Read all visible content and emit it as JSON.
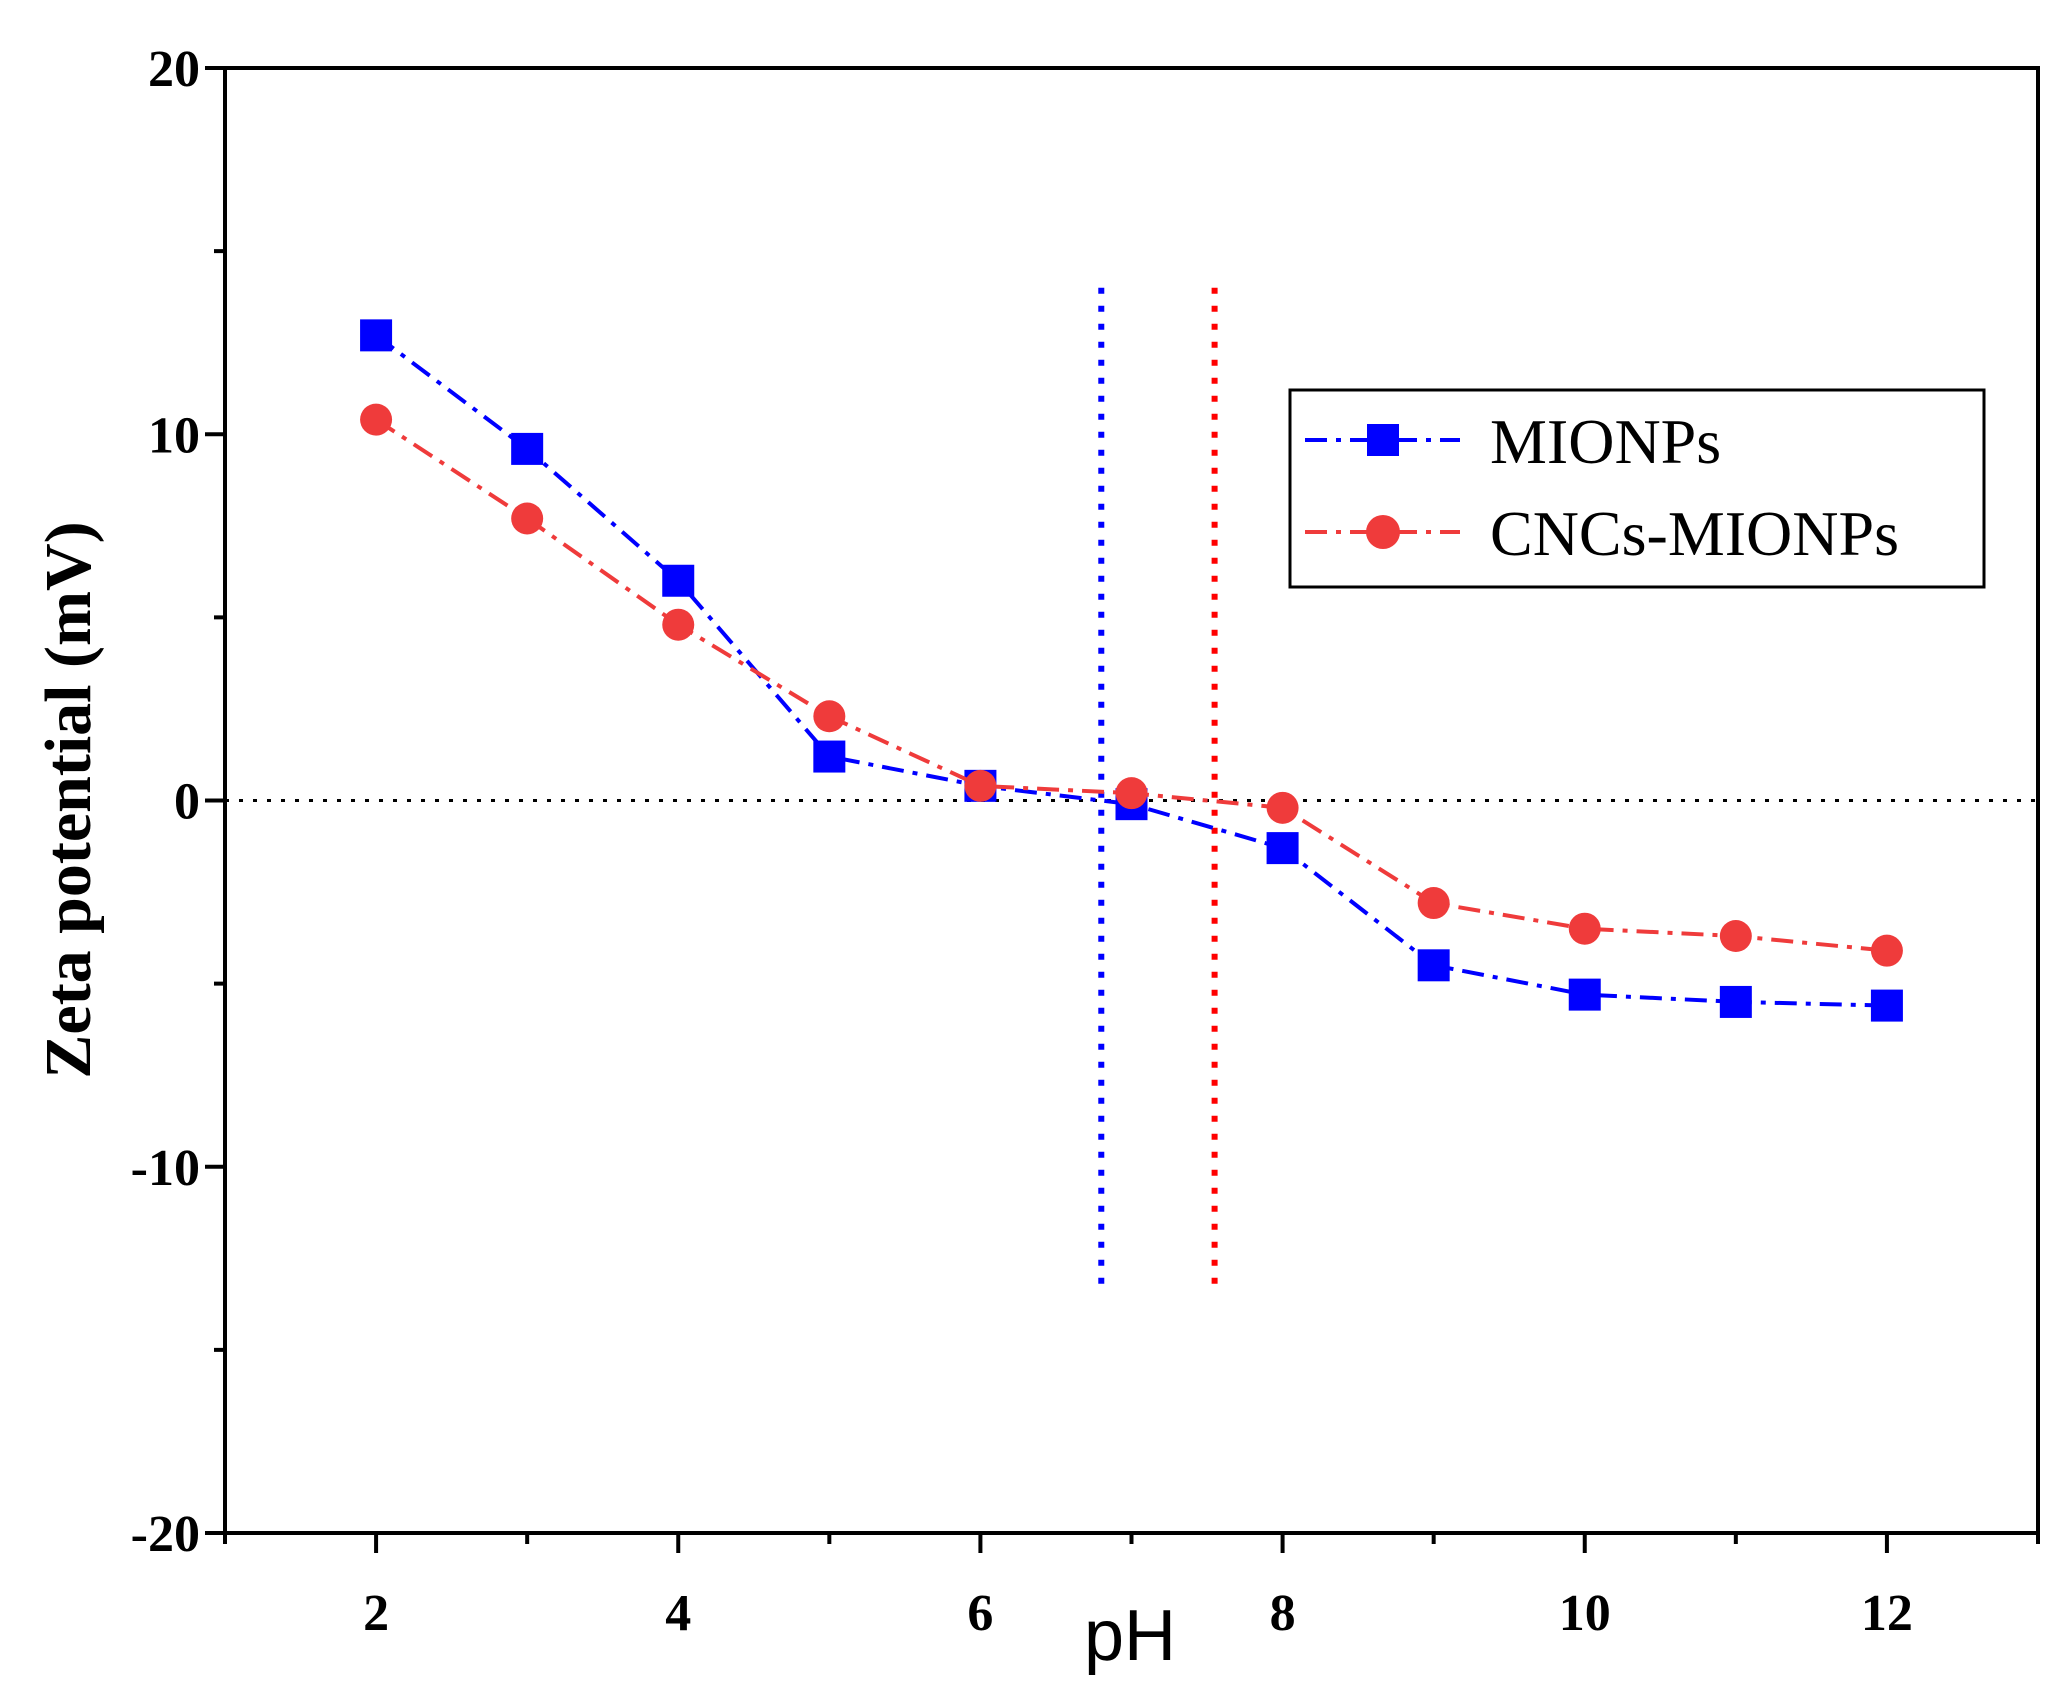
{
  "chart_data": {
    "type": "line",
    "title": "",
    "xlabel": "pH",
    "ylabel": "Zeta potential (mV)",
    "xlim": [
      1,
      13
    ],
    "ylim": [
      -20,
      20
    ],
    "x_ticks": [
      2,
      4,
      6,
      8,
      10,
      12
    ],
    "x_tick_labels": [
      "2",
      "4",
      "6",
      "8",
      "10",
      "12"
    ],
    "y_ticks": [
      -20,
      -10,
      0,
      10,
      20
    ],
    "y_tick_labels": [
      "-20",
      "-10",
      "0",
      "10",
      "20"
    ],
    "x": [
      2,
      3,
      4,
      5,
      6,
      7,
      8,
      9,
      10,
      11,
      12
    ],
    "series": [
      {
        "name": "MIONPs",
        "color": "#0000ff",
        "marker": "square",
        "line_style": "dash-dot",
        "values": [
          12.7,
          9.6,
          6.0,
          1.2,
          0.4,
          -0.1,
          -1.3,
          -4.5,
          -5.3,
          -5.5,
          -5.6
        ]
      },
      {
        "name": "CNCs-MIONPs",
        "color": "#ef3b3b",
        "marker": "circle",
        "line_style": "dash-dot",
        "values": [
          10.4,
          7.7,
          4.8,
          2.3,
          0.4,
          0.2,
          -0.2,
          -2.8,
          -3.5,
          -3.7,
          -4.1
        ]
      }
    ],
    "reference_lines": [
      {
        "orientation": "horizontal",
        "value": 0,
        "y_range": null,
        "color": "#000000",
        "style": "dotted"
      },
      {
        "orientation": "vertical",
        "value": 6.8,
        "y_range": [
          -13.5,
          14
        ],
        "color": "#0000ff",
        "style": "dotted"
      },
      {
        "orientation": "vertical",
        "value": 7.55,
        "y_range": [
          -13.5,
          14
        ],
        "color": "#ff0000",
        "style": "dotted"
      }
    ],
    "legend_position": "top-right",
    "grid": false
  }
}
